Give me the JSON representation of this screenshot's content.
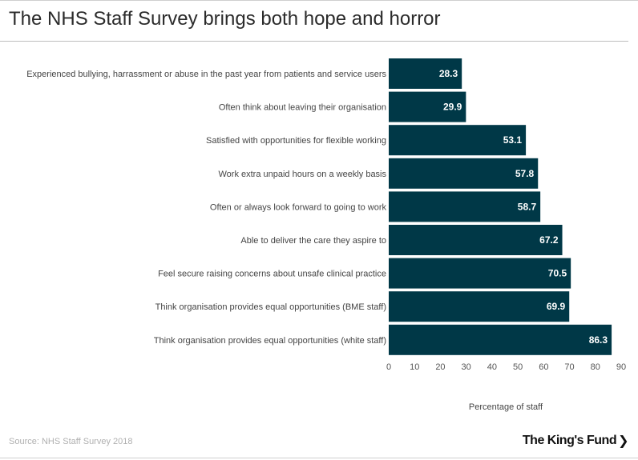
{
  "header": {
    "title": "The NHS Staff Survey brings both hope and horror"
  },
  "footer": {
    "source": "Source: NHS Staff Survey 2018",
    "brand": "The King's Fund",
    "brand_icon": "chevron-right-icon"
  },
  "colors": {
    "bar": "#003847",
    "bar_label": "#ffffff",
    "tick": "#555555",
    "category": "#444444"
  },
  "chart_data": {
    "type": "bar",
    "orientation": "horizontal",
    "title": "",
    "xlabel": "Percentage of staff",
    "ylabel": "",
    "xlim": [
      0,
      90
    ],
    "x_ticks": [
      0,
      10,
      20,
      30,
      40,
      50,
      60,
      70,
      80,
      90
    ],
    "grid": false,
    "legend": "none",
    "categories": [
      "Experienced bullying, harrassment or abuse in the past year from patients and service users",
      "Often think about leaving their organisation",
      "Satisfied with opportunities for flexible working",
      "Work extra unpaid hours on a weekly basis",
      "Often or always look forward to going to work",
      "Able to deliver the care they aspire to",
      "Feel secure raising concerns about unsafe clinical practice",
      "Think organisation provides equal opportunities (BME staff)",
      "Think organisation provides equal opportunities (white staff)"
    ],
    "values": [
      28.3,
      29.9,
      53.1,
      57.8,
      58.7,
      67.2,
      70.5,
      69.9,
      86.3
    ],
    "data_labels": [
      "28.3",
      "29.9",
      "53.1",
      "57.8",
      "58.7",
      "67.2",
      "70.5",
      "69.9",
      "86.3"
    ]
  }
}
